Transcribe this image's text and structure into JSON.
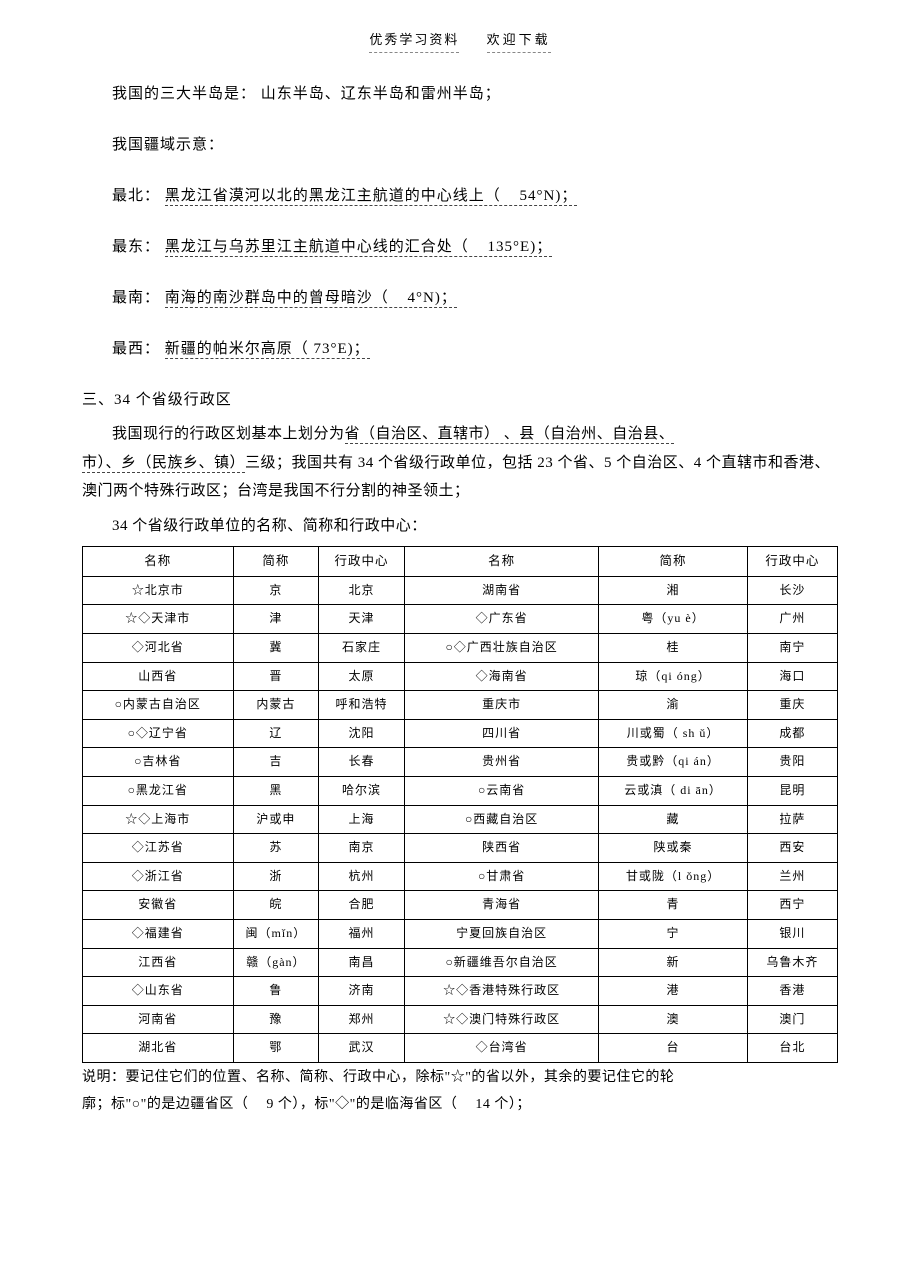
{
  "header": {
    "left": "优秀学习资料",
    "right": "欢迎下载"
  },
  "intro": {
    "peninsulas": "我国的三大半岛是：  山东半岛、辽东半岛和雷州半岛；",
    "domain_title": "我国疆域示意：",
    "north_label": "最北：",
    "north_text": "黑龙江省漠河以北的黑龙江主航道的中心线上（",
    "north_coord": "54°N)；",
    "east_label": "最东：",
    "east_text": "黑龙江与乌苏里江主航道中心线的汇合处（",
    "east_coord": "135°E)；",
    "south_label": "最南：",
    "south_text": "南海的南沙群岛中的曾母暗沙（",
    "south_coord": "4°N)；",
    "west_label": "最西：",
    "west_text": " 新疆的帕米尔高原（  73°E)；"
  },
  "section3": {
    "title": "三、34 个省级行政区",
    "body1a": "我国现行的行政区划基本上划分为",
    "body1b": "省（自治区、直辖市）  、县（自治州、自治县、",
    "body1c": "市）、乡（民族乡、镇）",
    "body1d": "三级；我国共有   34 个省级行政单位，包括   23 个省、5 个自治区、4 个直辖市和香港、澳门两个特殊行政区；台湾是我国不行分割的神圣领土；",
    "body2": "34 个省级行政单位的名称、简称和行政中心："
  },
  "table": {
    "headers": [
      "名称",
      "简称",
      "行政中心",
      "名称",
      "简称",
      "行政中心"
    ],
    "rows": [
      [
        "☆北京市",
        "京",
        "北京",
        "湖南省",
        "湘",
        "长沙"
      ],
      [
        "☆◇天津市",
        "津",
        "天津",
        "◇广东省",
        "粤（yu è）",
        "广州"
      ],
      [
        "◇河北省",
        "冀",
        "石家庄",
        "○◇广西壮族自治区",
        "桂",
        "南宁"
      ],
      [
        "山西省",
        "晋",
        "太原",
        "◇海南省",
        "琼（qi óng）",
        "海口"
      ],
      [
        "○内蒙古自治区",
        "内蒙古",
        "呼和浩特",
        "重庆市",
        "渝",
        "重庆"
      ],
      [
        "○◇辽宁省",
        "辽",
        "沈阳",
        "四川省",
        "川或蜀（ sh ǔ）",
        "成都"
      ],
      [
        "○吉林省",
        "吉",
        "长春",
        "贵州省",
        "贵或黔（qi án）",
        "贵阳"
      ],
      [
        "○黑龙江省",
        "黑",
        "哈尔滨",
        "○云南省",
        "云或滇（ di ān）",
        "昆明"
      ],
      [
        "☆◇上海市",
        "沪或申",
        "上海",
        "○西藏自治区",
        "藏",
        "拉萨"
      ],
      [
        "◇江苏省",
        "苏",
        "南京",
        "陕西省",
        "陕或秦",
        "西安"
      ],
      [
        "◇浙江省",
        "浙",
        "杭州",
        "○甘肃省",
        "甘或陇（l ǒng）",
        "兰州"
      ],
      [
        "安徽省",
        "皖",
        "合肥",
        "青海省",
        "青",
        "西宁"
      ],
      [
        "◇福建省",
        "闽（mǐn）",
        "福州",
        "宁夏回族自治区",
        "宁",
        "银川"
      ],
      [
        "江西省",
        "赣（gàn）",
        "南昌",
        "○新疆维吾尔自治区",
        "新",
        "乌鲁木齐"
      ],
      [
        "◇山东省",
        "鲁",
        "济南",
        "☆◇香港特殊行政区",
        "港",
        "香港"
      ],
      [
        "河南省",
        "豫",
        "郑州",
        "☆◇澳门特殊行政区",
        "澳",
        "澳门"
      ],
      [
        "湖北省",
        "鄂",
        "武汉",
        "◇台湾省",
        "台",
        "台北"
      ]
    ]
  },
  "note": {
    "line1": "说明：要记住它们的位置、名称、简称、行政中心，除标\"☆\"的省以外，其余的要记住它的轮",
    "line2a": "廓；标\"○\"的是边疆省区（",
    "line2b": "9 个），标\"◇\"的是临海省区（",
    "line2c": "14 个）；"
  }
}
